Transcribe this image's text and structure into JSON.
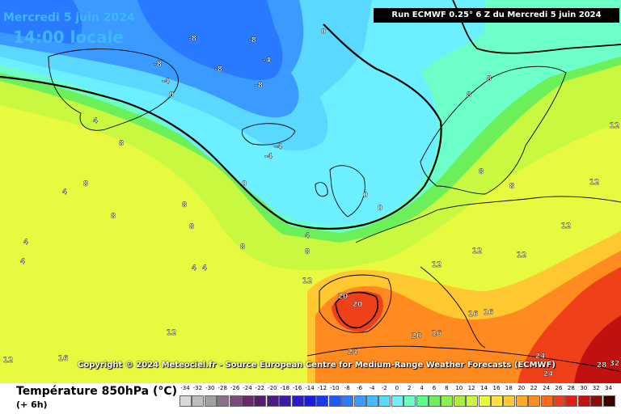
{
  "header": {
    "date": "Mercredi 5 juin 2024",
    "time": "14:00 locale",
    "run": "Run ECMWF 0.25° 6 Z du Mercredi 5 juin 2024"
  },
  "copyright": "Copyright © 2024 Meteociel.fr - Source European Centre for Medium-Range Weather Forecasts (ECMWF)",
  "footer": {
    "variable": "Température 850hPa (°C)",
    "lead": "(+ 6h)"
  },
  "legend": {
    "labels": [
      "-34",
      "-32",
      "-30",
      "-28",
      "-26",
      "-24",
      "-22",
      "-20",
      "-18",
      "-16",
      "-14",
      "-12",
      "-10",
      "-8",
      "-6",
      "-4",
      "-2",
      "0",
      "2",
      "4",
      "6",
      "8",
      "10",
      "12",
      "14",
      "16",
      "18",
      "20",
      "22",
      "24",
      "26",
      "28",
      "30",
      "32",
      "34"
    ],
    "colors": [
      "#d8d8d8",
      "#bdbdbd",
      "#a0a0a0",
      "#8c6e8c",
      "#7a4a7a",
      "#6a2a6a",
      "#5a1a6a",
      "#4a1a8a",
      "#3a1aa8",
      "#2a1ac8",
      "#1a1ae0",
      "#1a3af0",
      "#1a5aff",
      "#2a7aff",
      "#3a9aff",
      "#4abaff",
      "#5ad8ff",
      "#6cf0ff",
      "#6cffc8",
      "#5aff8a",
      "#6cf05a",
      "#8cf04a",
      "#aaf040",
      "#c8f840",
      "#e8fa40",
      "#ffe040",
      "#ffc830",
      "#ffaa20",
      "#ff8a20",
      "#ff6a1a",
      "#f0401a",
      "#e02018",
      "#c01010",
      "#900808",
      "#400000"
    ]
  },
  "map_labels": [
    {
      "t": "-8"
    },
    {
      "t": "-8"
    },
    {
      "t": "-8"
    },
    {
      "t": "-8"
    },
    {
      "t": "-4"
    },
    {
      "t": "-4"
    },
    {
      "t": "-4"
    },
    {
      "t": "-4"
    },
    {
      "t": "-8"
    },
    {
      "t": "0"
    },
    {
      "t": "0"
    },
    {
      "t": "0"
    },
    {
      "t": "0"
    },
    {
      "t": "0"
    },
    {
      "t": "4"
    },
    {
      "t": "4"
    },
    {
      "t": "4"
    },
    {
      "t": "4"
    },
    {
      "t": "4"
    },
    {
      "t": "4"
    },
    {
      "t": "4"
    },
    {
      "t": "8"
    },
    {
      "t": "8"
    },
    {
      "t": "8"
    },
    {
      "t": "8"
    },
    {
      "t": "8"
    },
    {
      "t": "8"
    },
    {
      "t": "8"
    },
    {
      "t": "8"
    },
    {
      "t": "8"
    },
    {
      "t": "8"
    },
    {
      "t": "8"
    },
    {
      "t": "12"
    },
    {
      "t": "12"
    },
    {
      "t": "12"
    },
    {
      "t": "12"
    },
    {
      "t": "12"
    },
    {
      "t": "12"
    },
    {
      "t": "12"
    },
    {
      "t": "12"
    },
    {
      "t": "12"
    },
    {
      "t": "16"
    },
    {
      "t": "16"
    },
    {
      "t": "16"
    },
    {
      "t": "16"
    },
    {
      "t": "20"
    },
    {
      "t": "20"
    },
    {
      "t": "20"
    },
    {
      "t": "24"
    },
    {
      "t": "24"
    },
    {
      "t": "24"
    },
    {
      "t": "28"
    },
    {
      "t": "32"
    }
  ]
}
